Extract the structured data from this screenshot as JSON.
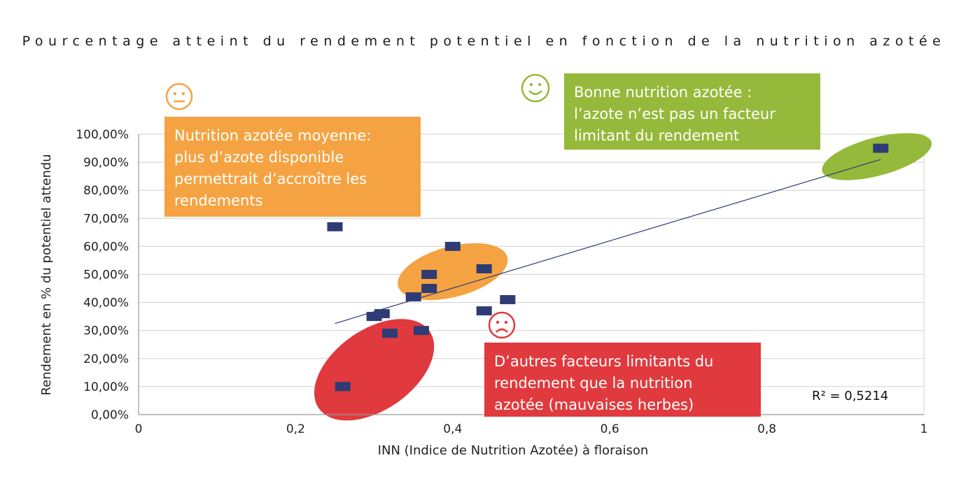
{
  "chart_data": {
    "type": "scatter",
    "title": "Pourcentage atteint du rendement potentiel en fonction de la nutrition azotée",
    "xlabel": "INN (Indice de Nutrition Azotée) à floraison",
    "ylabel": "Rendement en % du potentiel attendu",
    "xlim": [
      0,
      1
    ],
    "ylim": [
      0,
      1
    ],
    "x_ticks": [
      {
        "value": 0,
        "label": "0"
      },
      {
        "value": 0.2,
        "label": "0,2"
      },
      {
        "value": 0.4,
        "label": "0,4"
      },
      {
        "value": 0.6,
        "label": "0,6"
      },
      {
        "value": 0.8,
        "label": "0,8"
      },
      {
        "value": 1,
        "label": "1"
      }
    ],
    "y_ticks": [
      {
        "value": 0,
        "label": "0,00%"
      },
      {
        "value": 0.1,
        "label": "10,00%"
      },
      {
        "value": 0.2,
        "label": "20,00%"
      },
      {
        "value": 0.3,
        "label": "30,00%"
      },
      {
        "value": 0.4,
        "label": "40,00%"
      },
      {
        "value": 0.5,
        "label": "50,00%"
      },
      {
        "value": 0.6,
        "label": "60,00%"
      },
      {
        "value": 0.7,
        "label": "70,00%"
      },
      {
        "value": 0.8,
        "label": "80,00%"
      },
      {
        "value": 0.9,
        "label": "90,00%"
      },
      {
        "value": 1,
        "label": "100,00%"
      }
    ],
    "grid": true,
    "points": [
      {
        "x": 0.25,
        "y": 0.67
      },
      {
        "x": 0.26,
        "y": 0.1
      },
      {
        "x": 0.3,
        "y": 0.35
      },
      {
        "x": 0.31,
        "y": 0.36
      },
      {
        "x": 0.32,
        "y": 0.29
      },
      {
        "x": 0.35,
        "y": 0.42
      },
      {
        "x": 0.36,
        "y": 0.3
      },
      {
        "x": 0.37,
        "y": 0.5
      },
      {
        "x": 0.37,
        "y": 0.45
      },
      {
        "x": 0.4,
        "y": 0.6
      },
      {
        "x": 0.44,
        "y": 0.52
      },
      {
        "x": 0.44,
        "y": 0.37
      },
      {
        "x": 0.47,
        "y": 0.41
      },
      {
        "x": 0.945,
        "y": 0.95
      }
    ],
    "marker_color": "#2e3b74",
    "trendline": {
      "x": [
        0.25,
        0.945
      ],
      "y": [
        0.325,
        0.91
      ],
      "color": "#2e3b74"
    },
    "r_squared_label": "R² = 0,5214",
    "highlight_ellipses": [
      {
        "name": "orange-ellipse",
        "cx": 0.4,
        "cy": 0.51,
        "rx": 0.072,
        "ry": 0.09,
        "angle": -15,
        "color": "#f5a342"
      },
      {
        "name": "green-ellipse",
        "cx": 0.94,
        "cy": 0.92,
        "rx": 0.072,
        "ry": 0.068,
        "angle": -15,
        "color": "#95b93a"
      },
      {
        "name": "red-ellipse",
        "cx": 0.3,
        "cy": 0.16,
        "rx": 0.086,
        "ry": 0.143,
        "angle": -35,
        "color": "#e03a3e"
      }
    ],
    "callouts": {
      "orange": [
        "Nutrition azotée moyenne:",
        "plus d’azote disponible",
        "permettrait d’accroître les",
        "rendements"
      ],
      "green": [
        "Bonne nutrition azotée :",
        "l’azote n’est pas un facteur",
        "limitant du rendement"
      ],
      "red": [
        "D’autres facteurs limitants du",
        "rendement que la nutrition",
        "azotée (mauvaises herbes)"
      ]
    },
    "colors": {
      "orange": "#f5a342",
      "green": "#95b93a",
      "red": "#e03a3e",
      "grid": "#d0d0d0"
    }
  }
}
